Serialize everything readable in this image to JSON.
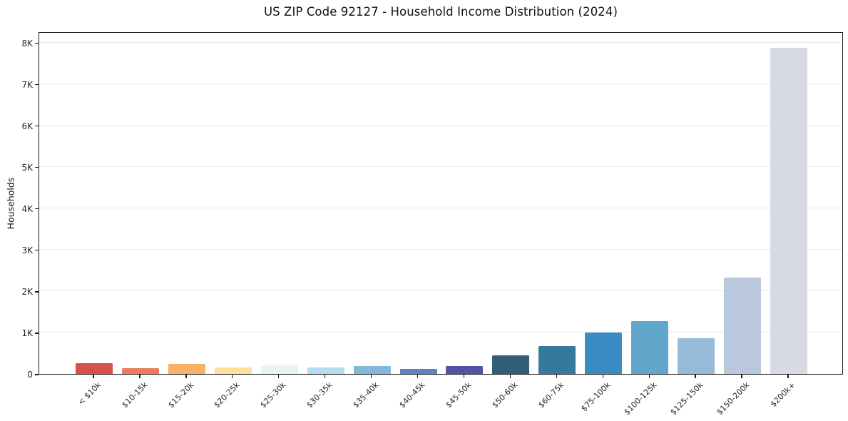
{
  "chart_data": {
    "type": "bar",
    "title": "US ZIP Code 92127 - Household Income Distribution (2024)",
    "xlabel": "",
    "ylabel": "Households",
    "categories": [
      "< $10k",
      "$10-15k",
      "$15-20k",
      "$20-25k",
      "$25-30k",
      "$30-35k",
      "$35-40k",
      "$40-45k",
      "$45-50k",
      "$50-60k",
      "$60-75k",
      "$75-100k",
      "$100-125k",
      "$125-150k",
      "$150-200k",
      "$200k+"
    ],
    "values": [
      260,
      130,
      240,
      150,
      210,
      160,
      195,
      125,
      195,
      450,
      680,
      1000,
      1270,
      870,
      2320,
      7870
    ],
    "bar_colors": [
      "#d8504c",
      "#ee7b5c",
      "#f9b168",
      "#fcdf9a",
      "#e7f5f0",
      "#b6dded",
      "#84b8db",
      "#5b84c4",
      "#5054a4",
      "#345d78",
      "#337a9e",
      "#3a8cc3",
      "#61a6cb",
      "#96bad8",
      "#b9c8dd",
      "#d7d9e4"
    ],
    "ylim": [
      0,
      8270
    ],
    "yticks": [
      0,
      1000,
      2000,
      3000,
      4000,
      5000,
      6000,
      7000,
      8000
    ],
    "ytick_labels": [
      "0",
      "1K",
      "2K",
      "3K",
      "4K",
      "5K",
      "6K",
      "7K",
      "8K"
    ],
    "grid": "horizontal-only",
    "legend": "none",
    "background_color": "#ffffff",
    "spine_color": "#1a1a1a",
    "grid_color": "#e9e9e9",
    "tick_text_color": "#262626"
  }
}
